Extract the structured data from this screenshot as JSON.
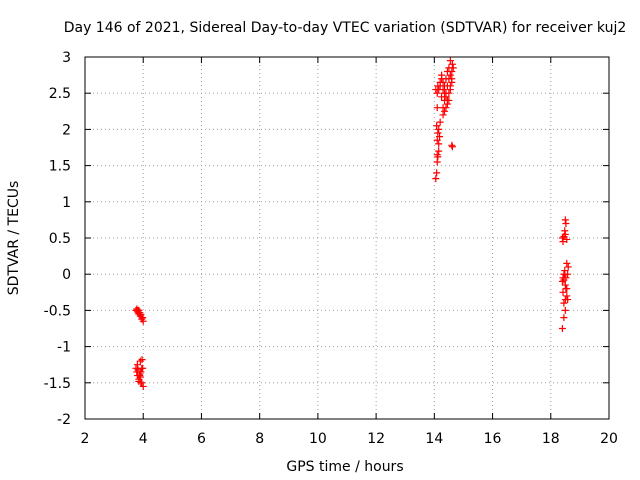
{
  "chart_data": {
    "type": "scatter",
    "title": "Day 146 of 2021, Sidereal Day-to-day VTEC variation (SDTVAR) for receiver kuj2",
    "xlabel": "GPS time / hours",
    "ylabel": "SDTVAR / TECUs",
    "xlim": [
      2,
      20
    ],
    "ylim": [
      -2,
      3
    ],
    "xticks": [
      "2",
      "4",
      "6",
      "8",
      "10",
      "12",
      "14",
      "16",
      "18",
      "20"
    ],
    "yticks": [
      "-2",
      "-1.5",
      "-1",
      "-0.5",
      "0",
      "0.5",
      "1",
      "1.5",
      "2",
      "2.5",
      "3"
    ],
    "grid": true,
    "marker": "+",
    "color": "#ff0000",
    "series": [
      {
        "name": "SDTVAR",
        "x": [
          3.75,
          3.8,
          3.85,
          3.9,
          3.95,
          3.78,
          3.82,
          3.88,
          3.92,
          3.98,
          4.0,
          3.85,
          3.75,
          3.78,
          3.8,
          3.82,
          3.85,
          3.88,
          3.9,
          3.92,
          3.95,
          3.98,
          4.0,
          3.8,
          3.85,
          3.9,
          3.95,
          3.88,
          3.92,
          3.96,
          14.05,
          14.08,
          14.1,
          14.12,
          14.15,
          14.1,
          14.12,
          14.08,
          14.15,
          14.18,
          14.2,
          14.1,
          14.05,
          14.12,
          14.1,
          14.15,
          14.1,
          14.15,
          14.2,
          14.25,
          14.3,
          14.35,
          14.4,
          14.45,
          14.5,
          14.55,
          14.6,
          14.62,
          14.2,
          14.25,
          14.3,
          14.35,
          14.4,
          14.45,
          14.5,
          14.55,
          14.6,
          14.3,
          14.35,
          14.4,
          14.45,
          14.5,
          14.55,
          14.6,
          14.65,
          14.25,
          14.3,
          14.35,
          14.4,
          14.45,
          14.5,
          14.55,
          14.6,
          14.62,
          18.4,
          18.45,
          18.5,
          18.55,
          18.42,
          18.48,
          18.52,
          18.5,
          18.4,
          18.42,
          18.45,
          18.48,
          18.5,
          18.52,
          18.55,
          18.58,
          18.6,
          18.45,
          18.5,
          18.55,
          18.42,
          18.48,
          18.52,
          18.4,
          18.45,
          18.5,
          18.55,
          18.58,
          18.45
        ],
        "y": [
          -0.5,
          -0.52,
          -0.55,
          -0.58,
          -0.62,
          -0.48,
          -0.5,
          -0.53,
          -0.56,
          -0.6,
          -0.65,
          -0.5,
          -1.3,
          -1.35,
          -1.4,
          -1.32,
          -1.45,
          -1.38,
          -1.42,
          -1.35,
          -1.5,
          -1.3,
          -1.55,
          -1.25,
          -1.48,
          -1.2,
          -1.3,
          -1.4,
          -1.5,
          -1.18,
          1.32,
          1.4,
          1.55,
          1.62,
          1.7,
          1.85,
          1.95,
          2.05,
          2.0,
          1.9,
          2.1,
          2.3,
          2.55,
          2.6,
          1.65,
          1.8,
          2.5,
          2.55,
          2.6,
          2.45,
          2.3,
          2.4,
          2.5,
          2.6,
          2.7,
          2.75,
          2.8,
          2.9,
          2.65,
          2.7,
          2.55,
          2.5,
          2.45,
          2.35,
          2.4,
          2.55,
          2.65,
          2.2,
          2.25,
          2.3,
          2.4,
          2.5,
          2.6,
          2.7,
          2.85,
          2.75,
          2.65,
          2.6,
          2.7,
          2.8,
          2.85,
          2.95,
          1.78,
          1.76,
          0.5,
          0.52,
          0.55,
          0.48,
          0.45,
          0.6,
          0.7,
          0.75,
          -0.1,
          -0.05,
          0.0,
          0.05,
          -0.15,
          -0.2,
          -0.3,
          -0.35,
          0.1,
          -0.4,
          -0.5,
          0.15,
          -0.25,
          0.0,
          -0.05,
          -0.75,
          -0.6,
          -0.35,
          -0.2,
          0.0,
          -0.08
        ]
      }
    ]
  }
}
